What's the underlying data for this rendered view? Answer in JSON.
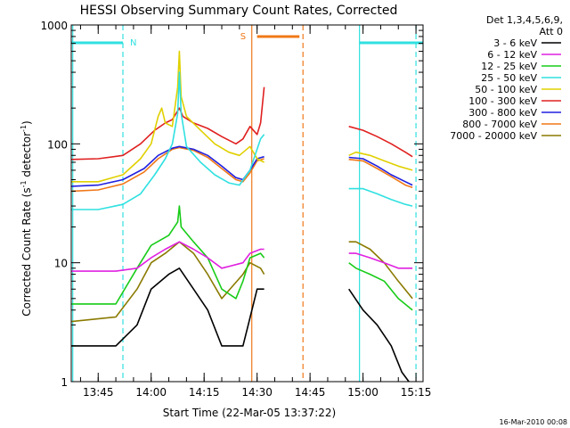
{
  "chart_data": {
    "type": "line",
    "title": "HESSI Observing Summary Count Rates, Corrected",
    "xlabel": "Start Time (22-Mar-05 13:37:22)",
    "ylabel_main": "Corrected Count Rate (s",
    "ylabel_sup1": "-1",
    "ylabel_mid": " detector",
    "ylabel_sup2": "-1",
    "ylabel_end": ")",
    "yscale": "log",
    "ylim": [
      1,
      1000
    ],
    "xlim_min": [
      37.37,
      137.0
    ],
    "x_unit": "minutes after 13:00 UT",
    "x_ticks": [
      {
        "value": 45,
        "label": "13:45"
      },
      {
        "value": 60,
        "label": "14:00"
      },
      {
        "value": 75,
        "label": "14:15"
      },
      {
        "value": 90,
        "label": "14:30"
      },
      {
        "value": 105,
        "label": "14:45"
      },
      {
        "value": 120,
        "label": "15:00"
      },
      {
        "value": 135,
        "label": "15:15"
      }
    ],
    "y_ticks": [
      {
        "value": 1,
        "label": "1"
      },
      {
        "value": 10,
        "label": "10"
      },
      {
        "value": 100,
        "label": "100"
      },
      {
        "value": 1000,
        "label": "1000"
      }
    ],
    "legend_title_1": "Det 1,3,4,5,6,9,",
    "legend_title_2": "Att 0",
    "data_gap": [
      92.5,
      116.0
    ],
    "series": [
      {
        "name": "3 - 6 keV",
        "color": "#000000",
        "points": [
          [
            37.5,
            2
          ],
          [
            50,
            2
          ],
          [
            56,
            3
          ],
          [
            60,
            6
          ],
          [
            65,
            8
          ],
          [
            68,
            9
          ],
          [
            72,
            6
          ],
          [
            76,
            4
          ],
          [
            80,
            2
          ],
          [
            86,
            2
          ],
          [
            87.5,
            3
          ],
          [
            90,
            6
          ],
          [
            92,
            6
          ],
          [
            116,
            6
          ],
          [
            120,
            4
          ],
          [
            124,
            3
          ],
          [
            128,
            2
          ],
          [
            131,
            1.2
          ],
          [
            133,
            1
          ]
        ]
      },
      {
        "name": "6 - 12 keV",
        "color": "#e020e0",
        "points": [
          [
            37.5,
            8.5
          ],
          [
            50,
            8.5
          ],
          [
            56,
            9
          ],
          [
            60,
            11
          ],
          [
            64,
            13
          ],
          [
            68,
            15
          ],
          [
            72,
            13
          ],
          [
            76,
            11
          ],
          [
            80,
            9
          ],
          [
            86,
            10
          ],
          [
            88,
            12
          ],
          [
            91,
            13
          ],
          [
            92,
            13
          ],
          [
            116,
            12
          ],
          [
            118,
            12
          ],
          [
            122,
            11
          ],
          [
            126,
            10
          ],
          [
            130,
            9
          ],
          [
            134,
            9
          ]
        ]
      },
      {
        "name": "12 - 25 keV",
        "color": "#18cc18",
        "points": [
          [
            37.5,
            4.5
          ],
          [
            50,
            4.5
          ],
          [
            56,
            9
          ],
          [
            60,
            14
          ],
          [
            65,
            17
          ],
          [
            67.5,
            22
          ],
          [
            68,
            30
          ],
          [
            68.5,
            20
          ],
          [
            72,
            15
          ],
          [
            76,
            11
          ],
          [
            80,
            6
          ],
          [
            84,
            5
          ],
          [
            86,
            7
          ],
          [
            88,
            11
          ],
          [
            91,
            12
          ],
          [
            92,
            11
          ],
          [
            116,
            10
          ],
          [
            118,
            9
          ],
          [
            122,
            8
          ],
          [
            126,
            7
          ],
          [
            130,
            5
          ],
          [
            134,
            4
          ]
        ]
      },
      {
        "name": "25 - 50 keV",
        "color": "#30e0e0",
        "points": [
          [
            37.5,
            28
          ],
          [
            45,
            28
          ],
          [
            52,
            31
          ],
          [
            57,
            38
          ],
          [
            61,
            55
          ],
          [
            64,
            75
          ],
          [
            66,
            100
          ],
          [
            67.5,
            180
          ],
          [
            68,
            400
          ],
          [
            68.5,
            180
          ],
          [
            70,
            95
          ],
          [
            74,
            70
          ],
          [
            78,
            55
          ],
          [
            82,
            47
          ],
          [
            85,
            45
          ],
          [
            88,
            60
          ],
          [
            91,
            110
          ],
          [
            92,
            120
          ],
          [
            116,
            42
          ],
          [
            120,
            42
          ],
          [
            124,
            38
          ],
          [
            128,
            34
          ],
          [
            132,
            31
          ],
          [
            134,
            30
          ]
        ]
      },
      {
        "name": "50 - 100 keV",
        "color": "#e0d000",
        "points": [
          [
            37.5,
            48
          ],
          [
            45,
            48
          ],
          [
            52,
            55
          ],
          [
            57,
            75
          ],
          [
            60,
            100
          ],
          [
            62,
            170
          ],
          [
            63,
            200
          ],
          [
            64,
            150
          ],
          [
            66,
            140
          ],
          [
            67.5,
            300
          ],
          [
            68,
            600
          ],
          [
            68.5,
            250
          ],
          [
            70,
            170
          ],
          [
            74,
            130
          ],
          [
            78,
            100
          ],
          [
            82,
            85
          ],
          [
            85,
            80
          ],
          [
            88,
            95
          ],
          [
            90,
            75
          ],
          [
            92,
            70
          ],
          [
            116,
            80
          ],
          [
            118,
            85
          ],
          [
            122,
            80
          ],
          [
            126,
            72
          ],
          [
            130,
            65
          ],
          [
            134,
            60
          ]
        ]
      },
      {
        "name": "100 - 300 keV",
        "color": "#e02020",
        "points": [
          [
            37.5,
            74
          ],
          [
            45,
            75
          ],
          [
            52,
            80
          ],
          [
            57,
            100
          ],
          [
            61,
            130
          ],
          [
            64,
            150
          ],
          [
            66,
            160
          ],
          [
            68,
            200
          ],
          [
            69,
            170
          ],
          [
            72,
            150
          ],
          [
            76,
            135
          ],
          [
            80,
            115
          ],
          [
            84,
            100
          ],
          [
            86,
            110
          ],
          [
            88,
            140
          ],
          [
            90,
            120
          ],
          [
            91,
            150
          ],
          [
            92,
            300
          ],
          [
            116,
            140
          ],
          [
            120,
            130
          ],
          [
            124,
            115
          ],
          [
            128,
            100
          ],
          [
            132,
            85
          ],
          [
            134,
            78
          ]
        ]
      },
      {
        "name": "300 - 800 keV",
        "color": "#2020e0",
        "points": [
          [
            37.5,
            44
          ],
          [
            45,
            45
          ],
          [
            52,
            50
          ],
          [
            58,
            62
          ],
          [
            62,
            80
          ],
          [
            66,
            92
          ],
          [
            68,
            95
          ],
          [
            72,
            90
          ],
          [
            76,
            80
          ],
          [
            80,
            65
          ],
          [
            84,
            52
          ],
          [
            86,
            50
          ],
          [
            88,
            60
          ],
          [
            90,
            75
          ],
          [
            92,
            78
          ],
          [
            116,
            77
          ],
          [
            120,
            75
          ],
          [
            124,
            65
          ],
          [
            128,
            55
          ],
          [
            132,
            48
          ],
          [
            134,
            45
          ]
        ]
      },
      {
        "name": "800 - 7000 keV",
        "color": "#f07818",
        "points": [
          [
            37.5,
            40
          ],
          [
            45,
            41
          ],
          [
            52,
            46
          ],
          [
            58,
            58
          ],
          [
            62,
            75
          ],
          [
            66,
            90
          ],
          [
            68,
            93
          ],
          [
            72,
            88
          ],
          [
            76,
            77
          ],
          [
            80,
            62
          ],
          [
            84,
            50
          ],
          [
            86,
            48
          ],
          [
            88,
            57
          ],
          [
            90,
            72
          ],
          [
            92,
            75
          ],
          [
            116,
            74
          ],
          [
            120,
            72
          ],
          [
            124,
            62
          ],
          [
            128,
            53
          ],
          [
            132,
            45
          ],
          [
            134,
            43
          ]
        ]
      },
      {
        "name": "7000 - 20000 keV",
        "color": "#8a7a00",
        "points": [
          [
            37.5,
            3.2
          ],
          [
            50,
            3.5
          ],
          [
            56,
            6
          ],
          [
            60,
            10
          ],
          [
            64,
            12
          ],
          [
            68,
            15
          ],
          [
            72,
            12
          ],
          [
            76,
            8
          ],
          [
            80,
            5
          ],
          [
            86,
            8
          ],
          [
            88,
            10
          ],
          [
            91,
            9
          ],
          [
            92,
            8
          ],
          [
            116,
            15
          ],
          [
            118,
            15
          ],
          [
            122,
            13
          ],
          [
            126,
            10
          ],
          [
            130,
            7
          ],
          [
            134,
            5
          ]
        ]
      }
    ],
    "markers": {
      "night_label": "N",
      "saa_label": "S",
      "night_color": "#30e0e0",
      "saa_color": "#f07818",
      "night_bars": [
        [
          37.5,
          52
        ],
        [
          119,
          137
        ]
      ],
      "night_lines_dashed": [
        52,
        135
      ],
      "night_lines_solid": [
        37.8,
        119
      ],
      "saa_bar": [
        90,
        102
      ],
      "saa_line_solid": 88.5,
      "saa_line_dashed": 103
    },
    "timestamp": "16-Mar-2010 00:08"
  }
}
